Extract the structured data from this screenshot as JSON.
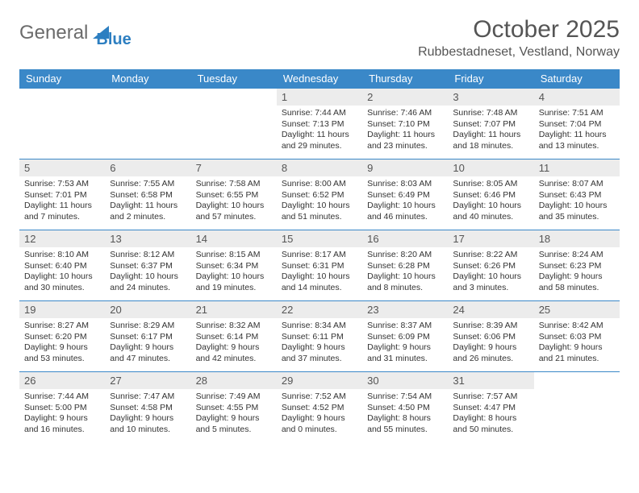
{
  "logo": {
    "text1": "General",
    "text2": "Blue"
  },
  "title": "October 2025",
  "location": "Rubbestadneset, Vestland, Norway",
  "colors": {
    "header_bg": "#3a88c8",
    "header_fg": "#ffffff",
    "daynum_bg": "#ececec",
    "border": "#3a88c8",
    "text": "#333333",
    "title": "#555555"
  },
  "day_headers": [
    "Sunday",
    "Monday",
    "Tuesday",
    "Wednesday",
    "Thursday",
    "Friday",
    "Saturday"
  ],
  "weeks": [
    [
      {
        "n": "",
        "sr": "",
        "ss": "",
        "dl": ""
      },
      {
        "n": "",
        "sr": "",
        "ss": "",
        "dl": ""
      },
      {
        "n": "",
        "sr": "",
        "ss": "",
        "dl": ""
      },
      {
        "n": "1",
        "sr": "Sunrise: 7:44 AM",
        "ss": "Sunset: 7:13 PM",
        "dl": "Daylight: 11 hours and 29 minutes."
      },
      {
        "n": "2",
        "sr": "Sunrise: 7:46 AM",
        "ss": "Sunset: 7:10 PM",
        "dl": "Daylight: 11 hours and 23 minutes."
      },
      {
        "n": "3",
        "sr": "Sunrise: 7:48 AM",
        "ss": "Sunset: 7:07 PM",
        "dl": "Daylight: 11 hours and 18 minutes."
      },
      {
        "n": "4",
        "sr": "Sunrise: 7:51 AM",
        "ss": "Sunset: 7:04 PM",
        "dl": "Daylight: 11 hours and 13 minutes."
      }
    ],
    [
      {
        "n": "5",
        "sr": "Sunrise: 7:53 AM",
        "ss": "Sunset: 7:01 PM",
        "dl": "Daylight: 11 hours and 7 minutes."
      },
      {
        "n": "6",
        "sr": "Sunrise: 7:55 AM",
        "ss": "Sunset: 6:58 PM",
        "dl": "Daylight: 11 hours and 2 minutes."
      },
      {
        "n": "7",
        "sr": "Sunrise: 7:58 AM",
        "ss": "Sunset: 6:55 PM",
        "dl": "Daylight: 10 hours and 57 minutes."
      },
      {
        "n": "8",
        "sr": "Sunrise: 8:00 AM",
        "ss": "Sunset: 6:52 PM",
        "dl": "Daylight: 10 hours and 51 minutes."
      },
      {
        "n": "9",
        "sr": "Sunrise: 8:03 AM",
        "ss": "Sunset: 6:49 PM",
        "dl": "Daylight: 10 hours and 46 minutes."
      },
      {
        "n": "10",
        "sr": "Sunrise: 8:05 AM",
        "ss": "Sunset: 6:46 PM",
        "dl": "Daylight: 10 hours and 40 minutes."
      },
      {
        "n": "11",
        "sr": "Sunrise: 8:07 AM",
        "ss": "Sunset: 6:43 PM",
        "dl": "Daylight: 10 hours and 35 minutes."
      }
    ],
    [
      {
        "n": "12",
        "sr": "Sunrise: 8:10 AM",
        "ss": "Sunset: 6:40 PM",
        "dl": "Daylight: 10 hours and 30 minutes."
      },
      {
        "n": "13",
        "sr": "Sunrise: 8:12 AM",
        "ss": "Sunset: 6:37 PM",
        "dl": "Daylight: 10 hours and 24 minutes."
      },
      {
        "n": "14",
        "sr": "Sunrise: 8:15 AM",
        "ss": "Sunset: 6:34 PM",
        "dl": "Daylight: 10 hours and 19 minutes."
      },
      {
        "n": "15",
        "sr": "Sunrise: 8:17 AM",
        "ss": "Sunset: 6:31 PM",
        "dl": "Daylight: 10 hours and 14 minutes."
      },
      {
        "n": "16",
        "sr": "Sunrise: 8:20 AM",
        "ss": "Sunset: 6:28 PM",
        "dl": "Daylight: 10 hours and 8 minutes."
      },
      {
        "n": "17",
        "sr": "Sunrise: 8:22 AM",
        "ss": "Sunset: 6:26 PM",
        "dl": "Daylight: 10 hours and 3 minutes."
      },
      {
        "n": "18",
        "sr": "Sunrise: 8:24 AM",
        "ss": "Sunset: 6:23 PM",
        "dl": "Daylight: 9 hours and 58 minutes."
      }
    ],
    [
      {
        "n": "19",
        "sr": "Sunrise: 8:27 AM",
        "ss": "Sunset: 6:20 PM",
        "dl": "Daylight: 9 hours and 53 minutes."
      },
      {
        "n": "20",
        "sr": "Sunrise: 8:29 AM",
        "ss": "Sunset: 6:17 PM",
        "dl": "Daylight: 9 hours and 47 minutes."
      },
      {
        "n": "21",
        "sr": "Sunrise: 8:32 AM",
        "ss": "Sunset: 6:14 PM",
        "dl": "Daylight: 9 hours and 42 minutes."
      },
      {
        "n": "22",
        "sr": "Sunrise: 8:34 AM",
        "ss": "Sunset: 6:11 PM",
        "dl": "Daylight: 9 hours and 37 minutes."
      },
      {
        "n": "23",
        "sr": "Sunrise: 8:37 AM",
        "ss": "Sunset: 6:09 PM",
        "dl": "Daylight: 9 hours and 31 minutes."
      },
      {
        "n": "24",
        "sr": "Sunrise: 8:39 AM",
        "ss": "Sunset: 6:06 PM",
        "dl": "Daylight: 9 hours and 26 minutes."
      },
      {
        "n": "25",
        "sr": "Sunrise: 8:42 AM",
        "ss": "Sunset: 6:03 PM",
        "dl": "Daylight: 9 hours and 21 minutes."
      }
    ],
    [
      {
        "n": "26",
        "sr": "Sunrise: 7:44 AM",
        "ss": "Sunset: 5:00 PM",
        "dl": "Daylight: 9 hours and 16 minutes."
      },
      {
        "n": "27",
        "sr": "Sunrise: 7:47 AM",
        "ss": "Sunset: 4:58 PM",
        "dl": "Daylight: 9 hours and 10 minutes."
      },
      {
        "n": "28",
        "sr": "Sunrise: 7:49 AM",
        "ss": "Sunset: 4:55 PM",
        "dl": "Daylight: 9 hours and 5 minutes."
      },
      {
        "n": "29",
        "sr": "Sunrise: 7:52 AM",
        "ss": "Sunset: 4:52 PM",
        "dl": "Daylight: 9 hours and 0 minutes."
      },
      {
        "n": "30",
        "sr": "Sunrise: 7:54 AM",
        "ss": "Sunset: 4:50 PM",
        "dl": "Daylight: 8 hours and 55 minutes."
      },
      {
        "n": "31",
        "sr": "Sunrise: 7:57 AM",
        "ss": "Sunset: 4:47 PM",
        "dl": "Daylight: 8 hours and 50 minutes."
      },
      {
        "n": "",
        "sr": "",
        "ss": "",
        "dl": ""
      }
    ]
  ]
}
